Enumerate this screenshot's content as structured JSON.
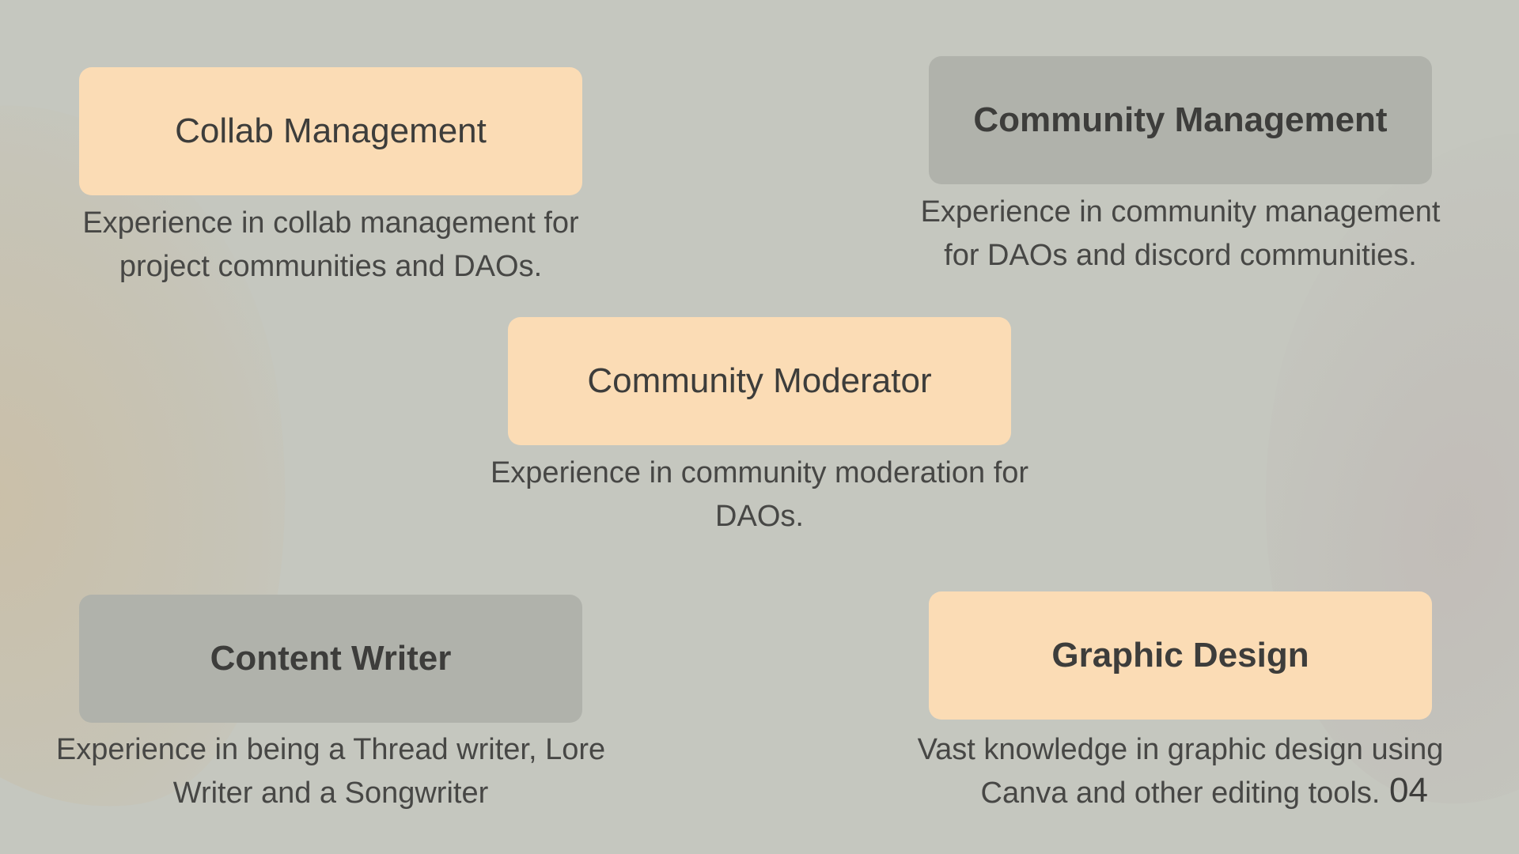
{
  "slide": {
    "page_number": "04",
    "cards": [
      {
        "title": "Collab Management",
        "description_line1": "Experience in collab management for",
        "description_line2": "project communities and DAOs."
      },
      {
        "title": "Community Management",
        "description_line1": "Experience in community management",
        "description_line2": "for DAOs and discord communities."
      },
      {
        "title": "Community Moderator",
        "description_line1": "Experience in community moderation for",
        "description_line2": "DAOs."
      },
      {
        "title": "Content Writer",
        "description_line1": "Experience in being a Thread writer, Lore",
        "description_line2": "Writer and a Songwriter"
      },
      {
        "title": "Graphic Design",
        "description_line1": "Vast knowledge in graphic design using",
        "description_line2": "Canva and other editing tools."
      }
    ]
  },
  "colors": {
    "background": "#c5c7bf",
    "peach_card": "#fbdcb5",
    "grey_card": "#b0b2ab",
    "text": "#3d3d3b"
  }
}
